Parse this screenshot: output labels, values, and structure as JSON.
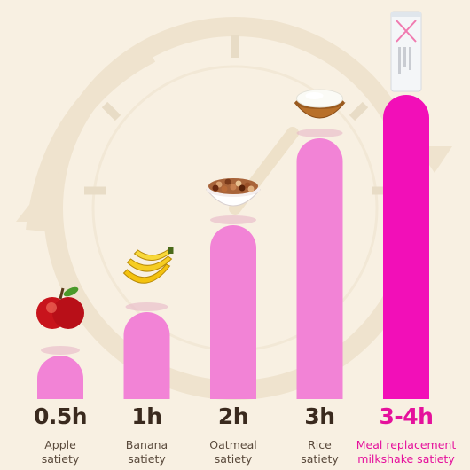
{
  "chart_data": {
    "type": "bar",
    "title": "",
    "xlabel": "",
    "ylabel": "",
    "ylim": [
      0,
      3.5
    ],
    "categories": [
      "Apple satiety",
      "Banana satiety",
      "Oatmeal satiety",
      "Rice satiety",
      "Meal replacement milkshake satiety"
    ],
    "category_lines": [
      [
        "Apple",
        "satiety"
      ],
      [
        "Banana",
        "satiety"
      ],
      [
        "Oatmeal",
        "satiety"
      ],
      [
        "Rice",
        "satiety"
      ],
      [
        "Meal replacement",
        "milkshake satiety"
      ]
    ],
    "value_labels": [
      "0.5h",
      "1h",
      "2h",
      "3h",
      "3-4h"
    ],
    "values": [
      0.5,
      1,
      2,
      3,
      3.5
    ],
    "highlight_index": 4,
    "icons": [
      "apple-icon",
      "banana-icon",
      "oatmeal-bowl-icon",
      "rice-bowl-icon",
      "milkshake-bottle-icon"
    ],
    "colors": {
      "bar": "#f283d6",
      "bar_highlight": "#f20fb8",
      "label": "#3a2a1e",
      "label_highlight": "#e5119c",
      "background": "#f8f0e2"
    }
  }
}
